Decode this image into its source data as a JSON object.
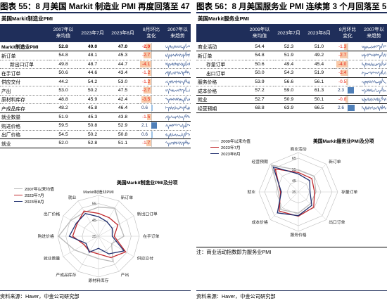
{
  "left": {
    "title": "图表 55：8 月美国 Markit 制造业 PMI 再度回落至 47",
    "table_caption": "美国Markit制造业PMI",
    "headers": [
      "",
      "2007年以\n来均值",
      "2023年7月",
      "2023年8月",
      "8月环比\n变化",
      "2007年以\n来趋势"
    ],
    "rows": [
      {
        "label": "Markit制造业PMI",
        "indent": false,
        "bold": true,
        "solid": true,
        "avg": "52.8",
        "jul": "49.0",
        "aug": "47.0",
        "chg": -2.0,
        "chg_label": "-2.0"
      },
      {
        "label": "新订单",
        "indent": false,
        "bold": false,
        "solid": false,
        "avg": "54.8",
        "jul": "48.1",
        "aug": "45.3",
        "chg": -2.7,
        "chg_label": "-2.7"
      },
      {
        "label": "新出口订单",
        "indent": true,
        "bold": false,
        "solid": false,
        "avg": "49.8",
        "jul": "48.7",
        "aug": "44.7",
        "chg": -4.1,
        "chg_label": "-4.1"
      },
      {
        "label": "在手订单",
        "indent": false,
        "bold": false,
        "solid": true,
        "avg": "50.6",
        "jul": "44.6",
        "aug": "43.4",
        "chg": -1.2,
        "chg_label": "-1.2"
      },
      {
        "label": "供应交付",
        "indent": false,
        "bold": false,
        "solid": false,
        "avg": "44.2",
        "jul": "54.2",
        "aug": "53.0",
        "chg": -1.2,
        "chg_label": "-1.2"
      },
      {
        "label": "产出",
        "indent": false,
        "bold": false,
        "solid": false,
        "avg": "53.0",
        "jul": "50.2",
        "aug": "47.5",
        "chg": -2.7,
        "chg_label": "-2.7"
      },
      {
        "label": "原材料库存",
        "indent": false,
        "bold": false,
        "solid": false,
        "avg": "48.8",
        "jul": "45.9",
        "aug": "42.4",
        "chg": -3.5,
        "chg_label": "-3.5"
      },
      {
        "label": "产成品库存",
        "indent": false,
        "bold": false,
        "solid": true,
        "avg": "48.2",
        "jul": "45.8",
        "aug": "46.4",
        "chg": 0.6,
        "chg_label": "0.6"
      },
      {
        "label": "就业数量",
        "indent": false,
        "bold": false,
        "solid": true,
        "avg": "51.9",
        "jul": "45.3",
        "aug": "43.8",
        "chg": -1.5,
        "chg_label": "-1.5"
      },
      {
        "label": "购进价格",
        "indent": false,
        "bold": false,
        "solid": false,
        "avg": "59.5",
        "jul": "50.8",
        "aug": "52.9",
        "chg": 2.1,
        "chg_label": "2.1"
      },
      {
        "label": "出厂价格",
        "indent": false,
        "bold": false,
        "solid": true,
        "avg": "54.5",
        "jul": "50.2",
        "aug": "50.8",
        "chg": 0.6,
        "chg_label": "0.6"
      },
      {
        "label": "就业",
        "indent": false,
        "bold": false,
        "solid": true,
        "avg": "52.0",
        "jul": "52.8",
        "aug": "51.1",
        "chg": -1.7,
        "chg_label": "-1.7"
      }
    ],
    "radar": {
      "title": "美国Markit制造业PMI及分项",
      "axes": [
        "Markit制造业PMI",
        "新订单",
        "新出口订单",
        "在手订单",
        "供应交付",
        "产出",
        "原材料库存",
        "产成品库存",
        "就业数量",
        "购进价格",
        "出厂价格",
        "就业"
      ],
      "ticks": [
        35,
        45,
        55
      ],
      "range": [
        35,
        60
      ],
      "series": [
        {
          "name": "2007年以来均值",
          "color": "#b8b8b8",
          "values": [
            52.8,
            54.8,
            49.8,
            50.6,
            44.2,
            53.0,
            48.8,
            48.2,
            51.9,
            59.5,
            54.5,
            52.0
          ]
        },
        {
          "name": "2023年7月",
          "color": "#c0282d",
          "values": [
            49.0,
            48.1,
            48.7,
            44.6,
            54.2,
            50.2,
            45.9,
            45.8,
            45.3,
            50.8,
            50.2,
            52.8
          ]
        },
        {
          "name": "2023年8月",
          "color": "#1f2e6e",
          "values": [
            47.0,
            45.3,
            44.7,
            43.4,
            53.0,
            47.5,
            42.4,
            46.4,
            43.8,
            52.9,
            50.8,
            51.1
          ]
        }
      ]
    },
    "source": "资料来源：Haver，中金公司研究部"
  },
  "right": {
    "title": "图表 56：8 月美国服务业 PMI 连续第 3 个月回落至 51",
    "table_caption": "美国Markit服务业PMI",
    "headers": [
      "",
      "2009年以\n来均值",
      "2023年7月",
      "2023年8月",
      "8月环比\n变化",
      "2007年以\n来趋势"
    ],
    "rows": [
      {
        "label": "商业活动",
        "indent": false,
        "bold": false,
        "solid": true,
        "avg": "54.4",
        "jul": "52.3",
        "aug": "51.0",
        "chg": -1.3,
        "chg_label": "-1.3"
      },
      {
        "label": "新订单",
        "indent": false,
        "bold": false,
        "solid": false,
        "avg": "54.8",
        "jul": "51.9",
        "aug": "49.2",
        "chg": -2.7,
        "chg_label": "-2.7"
      },
      {
        "label": "存量订单",
        "indent": true,
        "bold": false,
        "solid": false,
        "avg": "50.6",
        "jul": "49.4",
        "aug": "45.4",
        "chg": -4.0,
        "chg_label": "-4.0"
      },
      {
        "label": "出口订单",
        "indent": true,
        "bold": false,
        "solid": true,
        "avg": "50.0",
        "jul": "54.3",
        "aug": "51.9",
        "chg": -2.4,
        "chg_label": "-2.4"
      },
      {
        "label": "服务价格",
        "indent": false,
        "bold": false,
        "solid": false,
        "avg": "53.9",
        "jul": "56.6",
        "aug": "56.1",
        "chg": -0.5,
        "chg_label": "-0.5"
      },
      {
        "label": "成本价格",
        "indent": false,
        "bold": false,
        "solid": true,
        "avg": "57.2",
        "jul": "59.0",
        "aug": "61.3",
        "chg": 2.3,
        "chg_label": "2.3"
      },
      {
        "label": "就业",
        "indent": false,
        "bold": false,
        "solid": true,
        "avg": "52.7",
        "jul": "50.9",
        "aug": "50.1",
        "chg": -0.8,
        "chg_label": "-0.8"
      },
      {
        "label": "经营预期",
        "indent": false,
        "bold": false,
        "solid": true,
        "avg": "68.8",
        "jul": "63.9",
        "aug": "66.5",
        "chg": 2.6,
        "chg_label": "2.6"
      }
    ],
    "radar": {
      "title": "美国Markit服务业PMI及分项",
      "axes": [
        "商业活动",
        "新订单",
        "存量订单",
        "出口订单",
        "服务价格",
        "成本价格",
        "就业",
        "经营预期"
      ],
      "ticks": [
        35,
        45,
        55,
        65
      ],
      "range": [
        35,
        70
      ],
      "series": [
        {
          "name": "2009年以来均值",
          "color": "#b8b8b8",
          "values": [
            54.4,
            54.8,
            50.6,
            50.0,
            53.9,
            57.2,
            52.7,
            68.8
          ]
        },
        {
          "name": "2023年7月",
          "color": "#c0282d",
          "values": [
            52.3,
            51.9,
            49.4,
            54.3,
            56.6,
            59.0,
            50.9,
            63.9
          ]
        },
        {
          "name": "2023年8月",
          "color": "#1f2e6e",
          "values": [
            51.0,
            49.2,
            45.4,
            51.9,
            56.1,
            61.3,
            50.1,
            66.5
          ]
        }
      ]
    },
    "note": "注：商业活动指数即为服务业PMI",
    "source": "资料来源：Haver，中金公司研究部"
  }
}
